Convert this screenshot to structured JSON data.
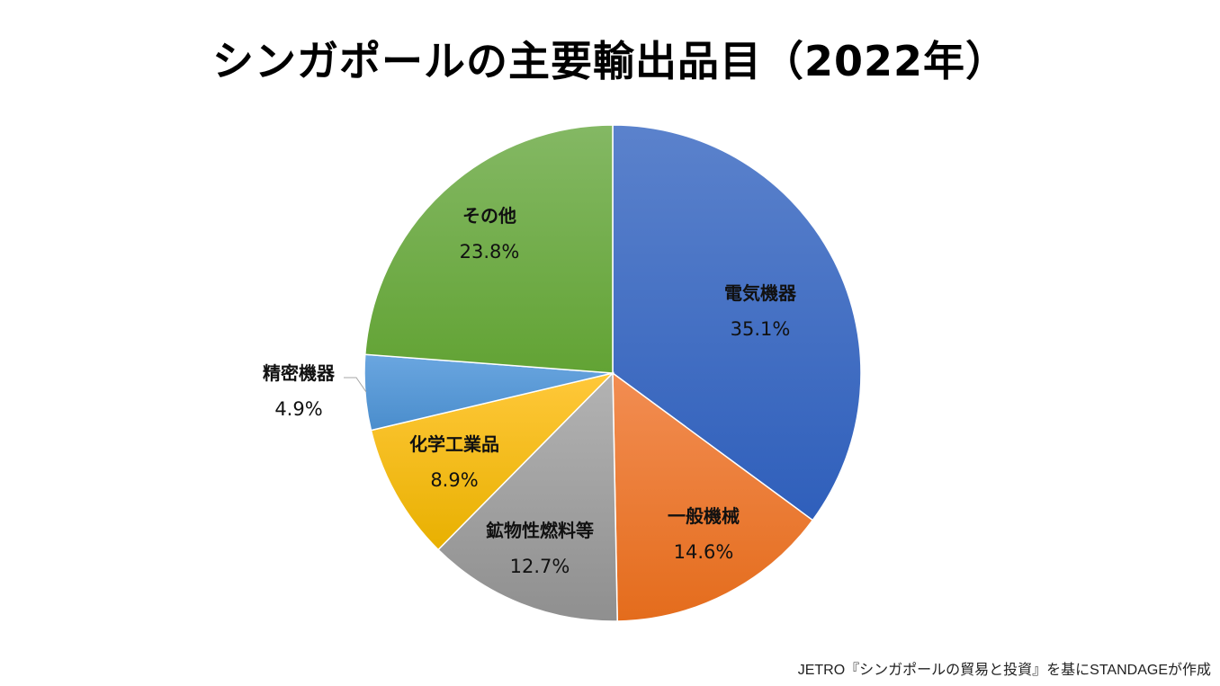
{
  "title": "シンガポールの主要輸出品目（2022年）",
  "source": "JETRO『シンガポールの貿易と投資』を基にSTANDAGEが作成",
  "chart_data": {
    "type": "pie",
    "title": "シンガポールの主要輸出品目（2022年）",
    "categories": [
      "電気機器",
      "一般機械",
      "鉱物性燃料等",
      "化学工業品",
      "精密機器",
      "その他"
    ],
    "values": [
      35.1,
      14.6,
      12.7,
      8.9,
      4.9,
      23.8
    ],
    "unit": "%",
    "colors": [
      "#4472C4",
      "#ED7D31",
      "#A5A5A5",
      "#FFC000",
      "#5B9BD5",
      "#70AD47"
    ],
    "start_angle": "12 o'clock, clockwise",
    "legend": "none (data labels on slices)"
  },
  "labels": [
    {
      "name": "電気機器",
      "pct": "35.1%"
    },
    {
      "name": "一般機械",
      "pct": "14.6%"
    },
    {
      "name": "鉱物性燃料等",
      "pct": "12.7%"
    },
    {
      "name": "化学工業品",
      "pct": "8.9%"
    },
    {
      "name": "精密機器",
      "pct": "4.9%"
    },
    {
      "name": "その他",
      "pct": "23.8%"
    }
  ]
}
